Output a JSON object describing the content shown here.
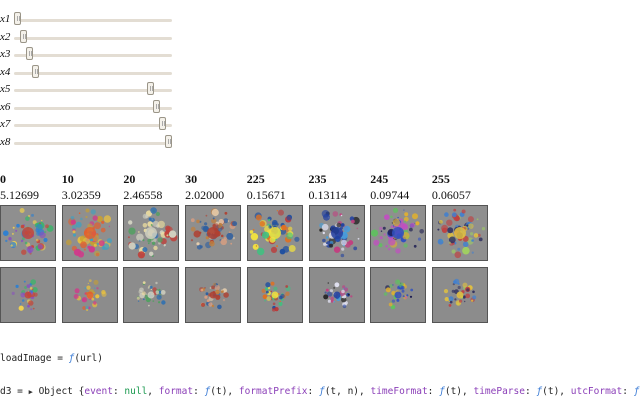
{
  "sliders": [
    {
      "label": "x1",
      "value": 0
    },
    {
      "label": "x2",
      "value": 10
    },
    {
      "label": "x3",
      "value": 20
    },
    {
      "label": "x4",
      "value": 30
    },
    {
      "label": "x5",
      "value": 225
    },
    {
      "label": "x6",
      "value": 235
    },
    {
      "label": "x7",
      "value": 245
    },
    {
      "label": "x8",
      "value": 255
    }
  ],
  "slider_max": 255,
  "columns": [
    {
      "index": "0",
      "value": "5.12699"
    },
    {
      "index": "10",
      "value": "3.02359"
    },
    {
      "index": "20",
      "value": "2.46558"
    },
    {
      "index": "30",
      "value": "2.02000"
    },
    {
      "index": "225",
      "value": "0.15671"
    },
    {
      "index": "235",
      "value": "0.13114"
    },
    {
      "index": "245",
      "value": "0.09744"
    },
    {
      "index": "255",
      "value": "0.06057"
    }
  ],
  "code": {
    "load_image_name": "loadImage",
    "load_image_eq": " = ",
    "load_image_fn": "ƒ",
    "load_image_args": "(url)",
    "d3_name": "d3",
    "d3_eq": " = ",
    "d3_tri": "▶",
    "d3_object": "Object {",
    "d3_fields": [
      {
        "key": "event",
        "sep": ": ",
        "val": "null",
        "type": "null",
        "post": ", "
      },
      {
        "key": "format",
        "sep": ": ",
        "val": "ƒ",
        "type": "fn",
        "post": "(t), "
      },
      {
        "key": "formatPrefix",
        "sep": ": ",
        "val": "ƒ",
        "type": "fn",
        "post": "(t, n), "
      },
      {
        "key": "timeFormat",
        "sep": ": ",
        "val": "ƒ",
        "type": "fn",
        "post": "(t), "
      },
      {
        "key": "timeParse",
        "sep": ": ",
        "val": "ƒ",
        "type": "fn",
        "post": "(t), "
      },
      {
        "key": "utcFormat",
        "sep": ": ",
        "val": "ƒ",
        "type": "fn",
        "post": "(t),"
      }
    ]
  },
  "colors": {
    "track": "#e3ddd3",
    "thumb": "#f4f1ea",
    "fn": "#3a7bd5",
    "key": "#8b3fb8",
    "null": "#1c9a50"
  }
}
